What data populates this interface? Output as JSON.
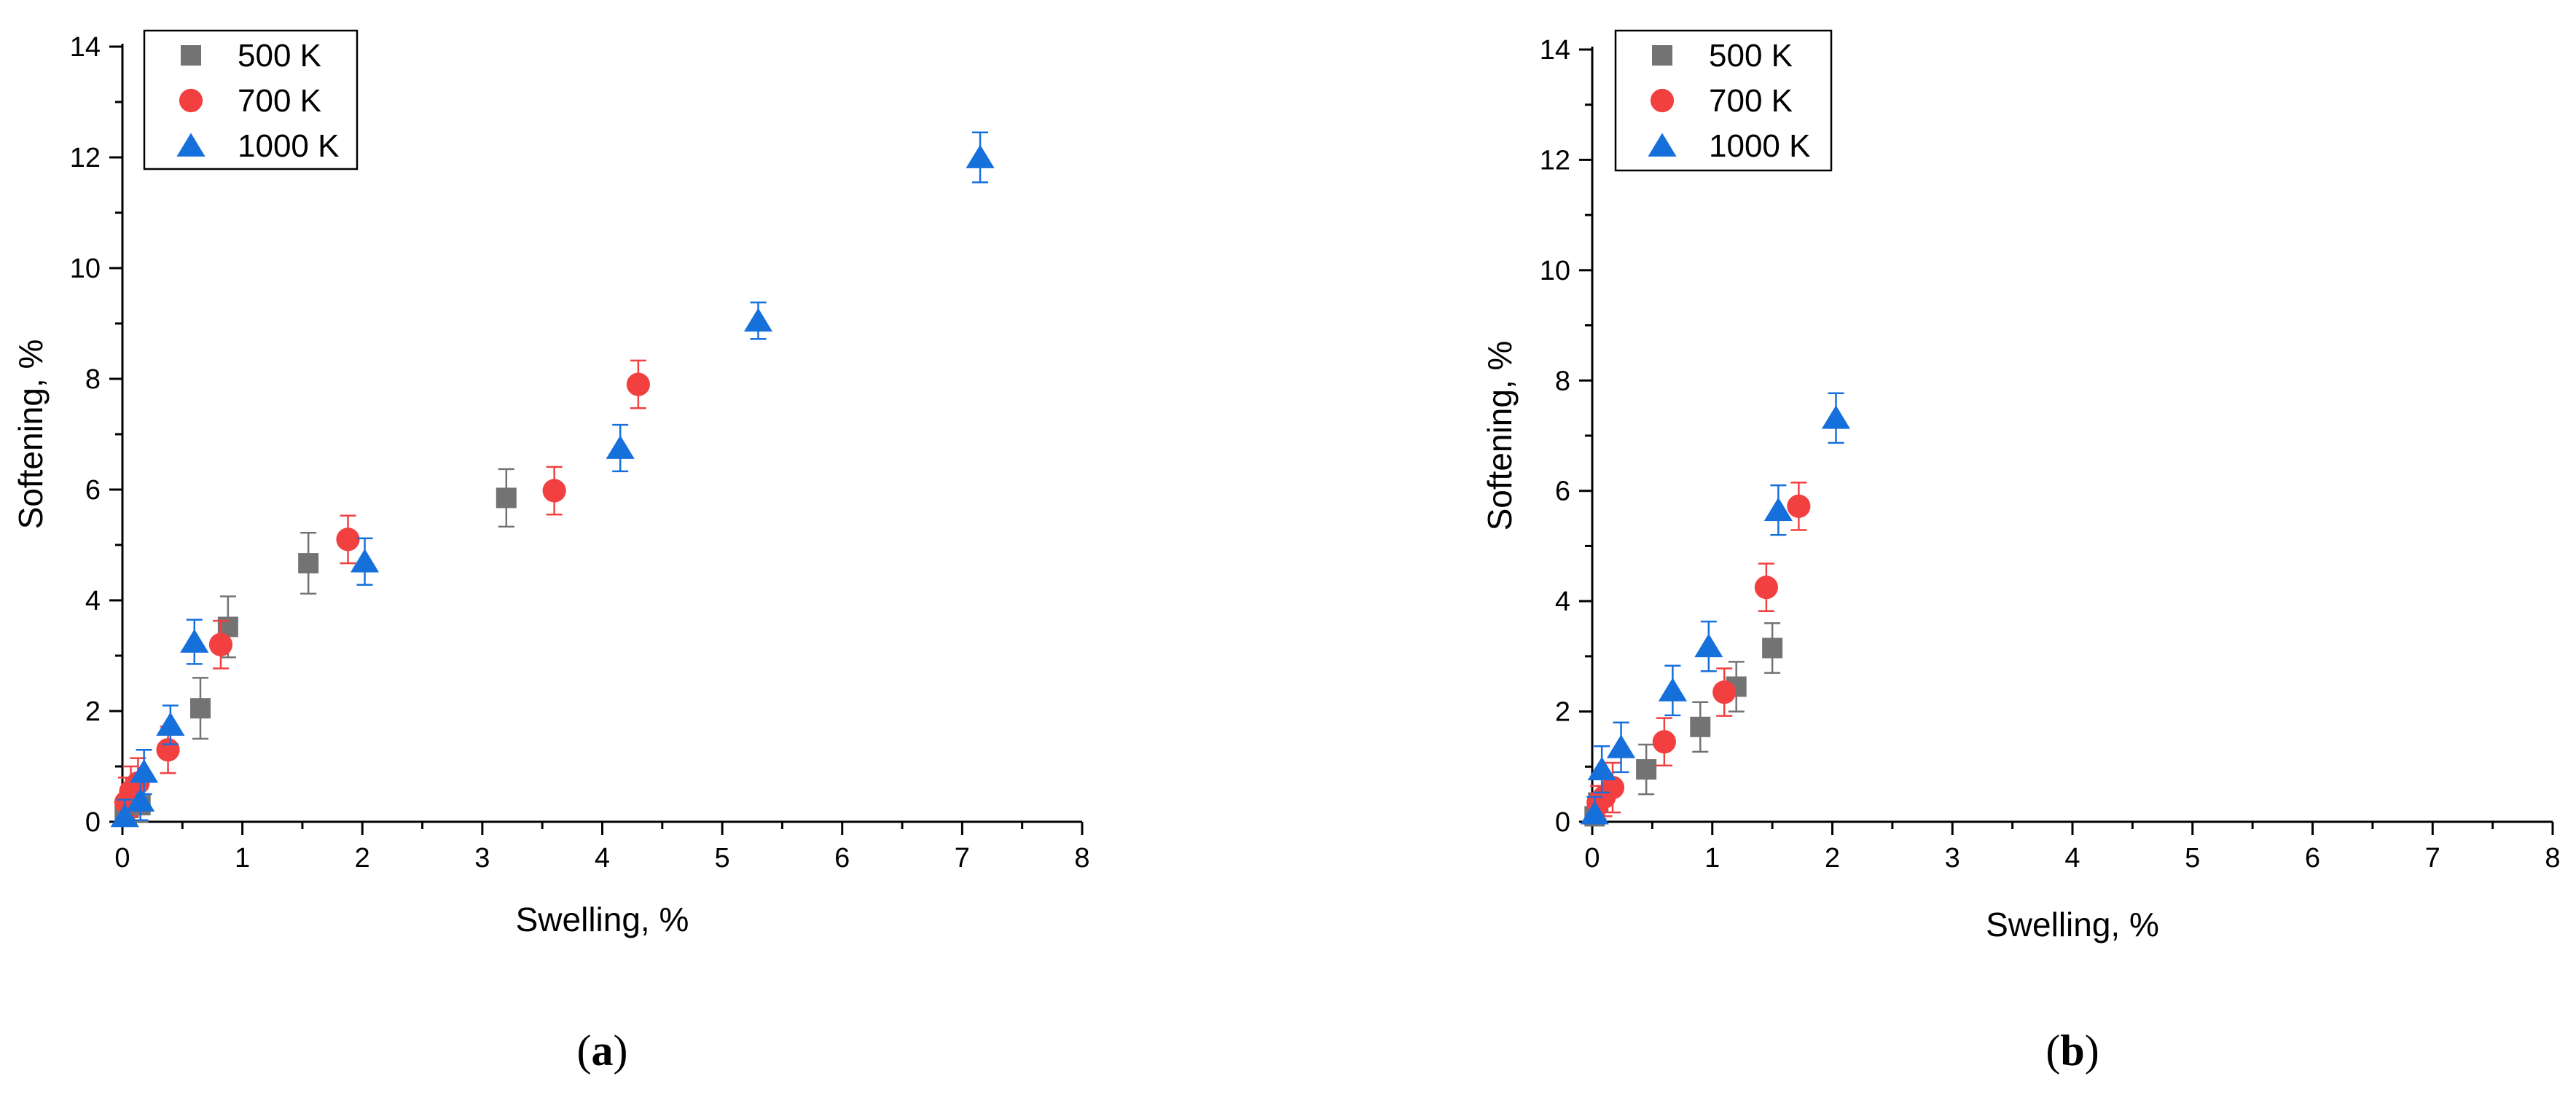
{
  "chart_data": [
    {
      "type": "scatter",
      "panel_label": "(a)",
      "xlabel": "Swelling, %",
      "ylabel": "Softening, %",
      "xlim": [
        0,
        8
      ],
      "ylim": [
        0,
        14
      ],
      "xticks": [
        0,
        1,
        2,
        3,
        4,
        5,
        6,
        7,
        8
      ],
      "yticks": [
        0,
        2,
        4,
        6,
        8,
        10,
        12,
        14
      ],
      "legend_position": "top-left",
      "series": [
        {
          "name": "500 K",
          "marker": "square",
          "color": "#737373",
          "points": [
            {
              "x": 0.02,
              "y": 0.1,
              "err": 0.25
            },
            {
              "x": 0.05,
              "y": 0.25,
              "err": 0.3
            },
            {
              "x": 0.15,
              "y": 0.3,
              "err": 0.3
            },
            {
              "x": 0.65,
              "y": 2.05,
              "err": 0.55
            },
            {
              "x": 0.88,
              "y": 3.52,
              "err": 0.55
            },
            {
              "x": 1.55,
              "y": 4.67,
              "err": 0.55
            },
            {
              "x": 3.2,
              "y": 5.85,
              "err": 0.52
            }
          ]
        },
        {
          "name": "700 K",
          "marker": "circle",
          "color": "#f24040",
          "points": [
            {
              "x": 0.03,
              "y": 0.35,
              "err": 0.45
            },
            {
              "x": 0.07,
              "y": 0.55,
              "err": 0.45
            },
            {
              "x": 0.13,
              "y": 0.7,
              "err": 0.45
            },
            {
              "x": 0.38,
              "y": 1.3,
              "err": 0.42
            },
            {
              "x": 0.82,
              "y": 3.2,
              "err": 0.43
            },
            {
              "x": 1.88,
              "y": 5.1,
              "err": 0.43
            },
            {
              "x": 3.6,
              "y": 5.98,
              "err": 0.43
            },
            {
              "x": 4.3,
              "y": 7.9,
              "err": 0.43
            }
          ]
        },
        {
          "name": "1000 K",
          "marker": "triangle",
          "color": "#1670dc",
          "points": [
            {
              "x": 0.02,
              "y": 0.1,
              "err": 0.3
            },
            {
              "x": 0.15,
              "y": 0.38,
              "err": 0.35
            },
            {
              "x": 0.18,
              "y": 0.9,
              "err": 0.4
            },
            {
              "x": 0.4,
              "y": 1.75,
              "err": 0.35
            },
            {
              "x": 0.6,
              "y": 3.25,
              "err": 0.4
            },
            {
              "x": 2.02,
              "y": 4.7,
              "err": 0.42
            },
            {
              "x": 4.15,
              "y": 6.75,
              "err": 0.42
            },
            {
              "x": 5.3,
              "y": 9.05,
              "err": 0.33
            },
            {
              "x": 7.15,
              "y": 12.0,
              "err": 0.45
            }
          ]
        }
      ]
    },
    {
      "type": "scatter",
      "panel_label": "(b)",
      "xlabel": "Swelling, %",
      "ylabel": "Softening, %",
      "xlim": [
        0,
        8
      ],
      "ylim": [
        0,
        14
      ],
      "xticks": [
        0,
        1,
        2,
        3,
        4,
        5,
        6,
        7,
        8
      ],
      "yticks": [
        0,
        2,
        4,
        6,
        8,
        10,
        12,
        14
      ],
      "legend_position": "top-left",
      "series": [
        {
          "name": "500 K",
          "marker": "square",
          "color": "#737373",
          "points": [
            {
              "x": 0.02,
              "y": 0.1,
              "err": 0.25
            },
            {
              "x": 0.05,
              "y": 0.35,
              "err": 0.3
            },
            {
              "x": 0.45,
              "y": 0.95,
              "err": 0.45
            },
            {
              "x": 0.9,
              "y": 1.72,
              "err": 0.45
            },
            {
              "x": 1.2,
              "y": 2.45,
              "err": 0.45
            },
            {
              "x": 1.5,
              "y": 3.15,
              "err": 0.45
            }
          ]
        },
        {
          "name": "700 K",
          "marker": "circle",
          "color": "#f24040",
          "points": [
            {
              "x": 0.05,
              "y": 0.35,
              "err": 0.3
            },
            {
              "x": 0.1,
              "y": 0.45,
              "err": 0.35
            },
            {
              "x": 0.17,
              "y": 0.62,
              "err": 0.45
            },
            {
              "x": 0.6,
              "y": 1.45,
              "err": 0.43
            },
            {
              "x": 1.1,
              "y": 2.35,
              "err": 0.43
            },
            {
              "x": 1.45,
              "y": 4.25,
              "err": 0.43
            },
            {
              "x": 1.72,
              "y": 5.72,
              "err": 0.43
            }
          ]
        },
        {
          "name": "1000 K",
          "marker": "triangle",
          "color": "#1670dc",
          "points": [
            {
              "x": 0.02,
              "y": 0.15,
              "err": 0.3
            },
            {
              "x": 0.08,
              "y": 0.95,
              "err": 0.42
            },
            {
              "x": 0.24,
              "y": 1.35,
              "err": 0.45
            },
            {
              "x": 0.67,
              "y": 2.38,
              "err": 0.45
            },
            {
              "x": 0.97,
              "y": 3.18,
              "err": 0.45
            },
            {
              "x": 1.55,
              "y": 5.65,
              "err": 0.45
            },
            {
              "x": 2.03,
              "y": 7.32,
              "err": 0.45
            }
          ]
        }
      ]
    }
  ]
}
